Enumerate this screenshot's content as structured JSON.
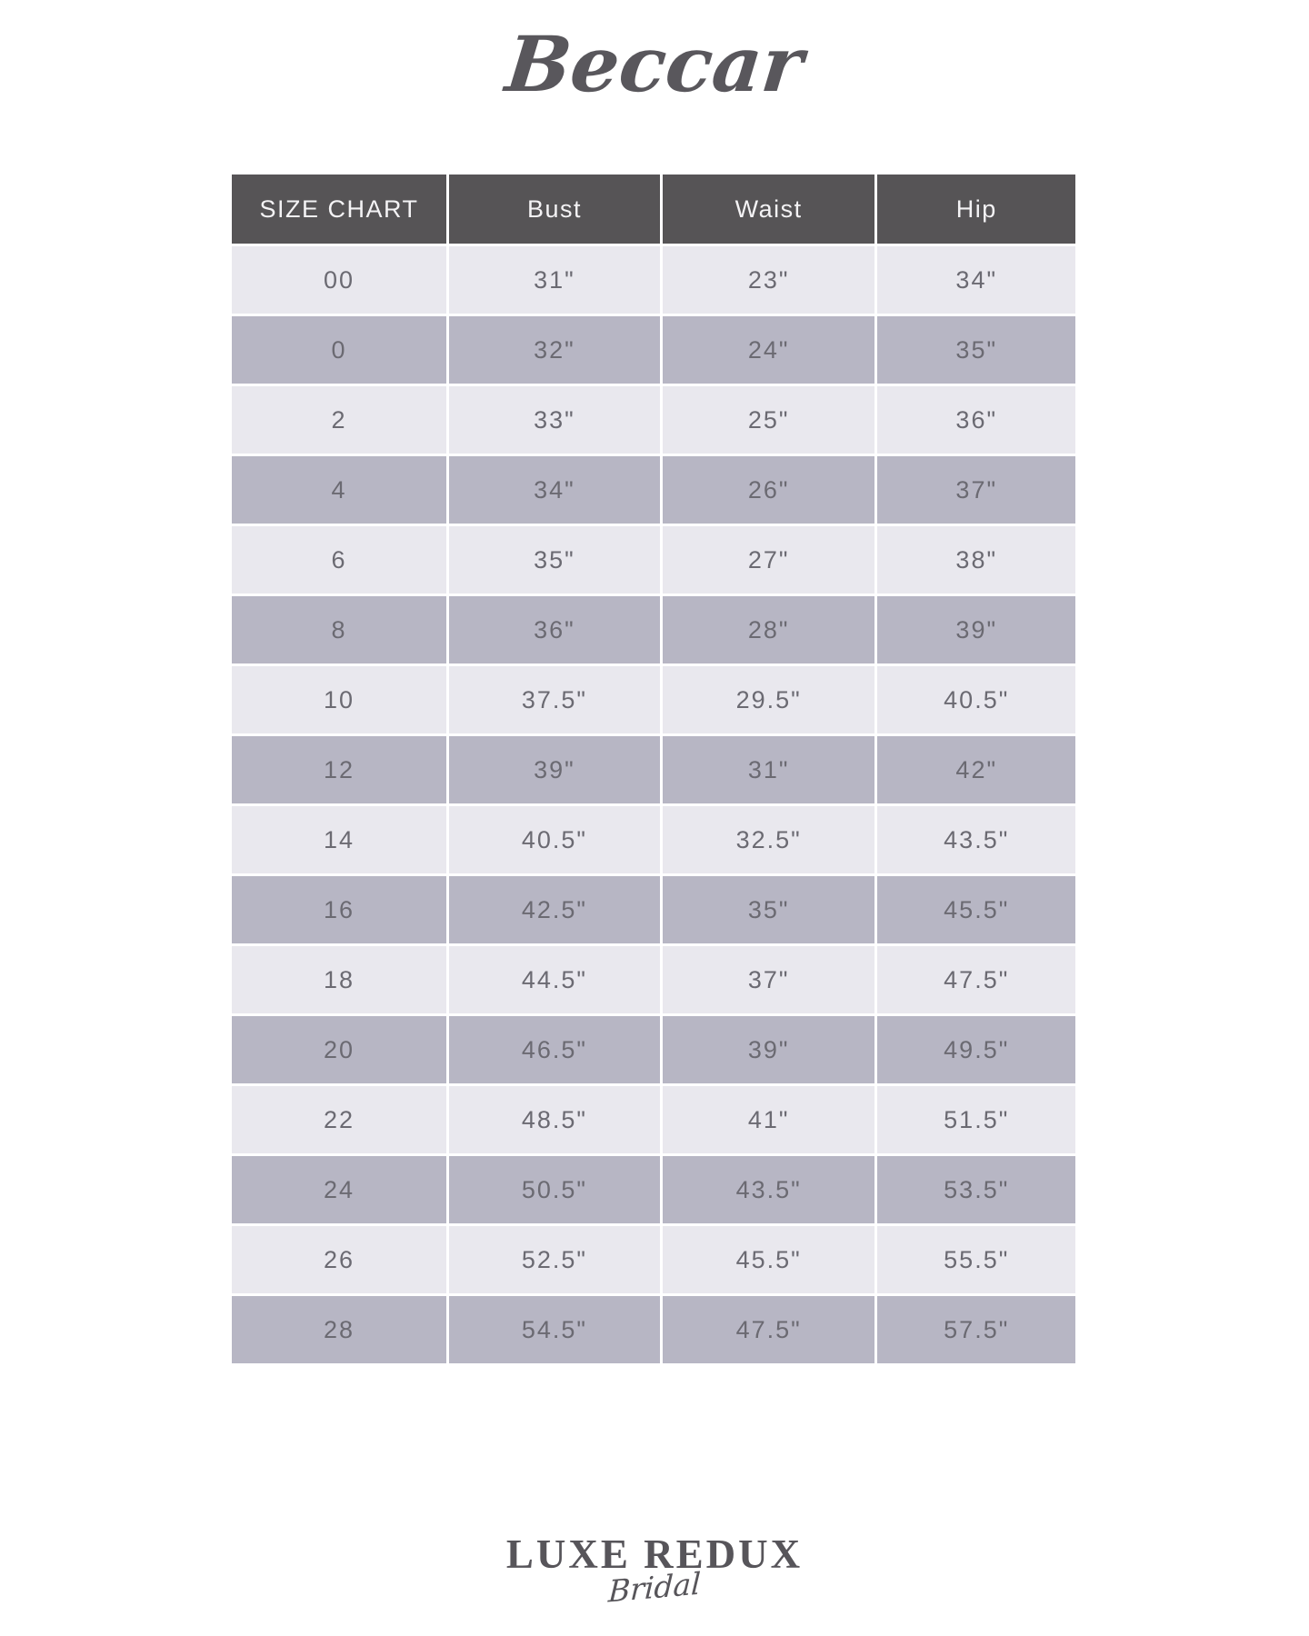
{
  "brand": {
    "logo_text": "Beccar"
  },
  "footer": {
    "logo_main": "LUXE REDUX",
    "logo_sub": "Bridal"
  },
  "colors": {
    "header_bg": "#565456",
    "header_text": "#f4f3f5",
    "row_light": "#e9e8ee",
    "row_dark": "#b7b6c4",
    "cell_text": "#6b6a72",
    "logo_text": "#59575c"
  },
  "chart_data": {
    "type": "table",
    "title": "SIZE CHART",
    "columns": [
      "SIZE CHART",
      "Bust",
      "Waist",
      "Hip"
    ],
    "rows": [
      [
        "00",
        "31\"",
        "23\"",
        "34\""
      ],
      [
        "0",
        "32\"",
        "24\"",
        "35\""
      ],
      [
        "2",
        "33\"",
        "25\"",
        "36\""
      ],
      [
        "4",
        "34\"",
        "26\"",
        "37\""
      ],
      [
        "6",
        "35\"",
        "27\"",
        "38\""
      ],
      [
        "8",
        "36\"",
        "28\"",
        "39\""
      ],
      [
        "10",
        "37.5\"",
        "29.5\"",
        "40.5\""
      ],
      [
        "12",
        "39\"",
        "31\"",
        "42\""
      ],
      [
        "14",
        "40.5\"",
        "32.5\"",
        "43.5\""
      ],
      [
        "16",
        "42.5\"",
        "35\"",
        "45.5\""
      ],
      [
        "18",
        "44.5\"",
        "37\"",
        "47.5\""
      ],
      [
        "20",
        "46.5\"",
        "39\"",
        "49.5\""
      ],
      [
        "22",
        "48.5\"",
        "41\"",
        "51.5\""
      ],
      [
        "24",
        "50.5\"",
        "43.5\"",
        "53.5\""
      ],
      [
        "26",
        "52.5\"",
        "45.5\"",
        "55.5\""
      ],
      [
        "28",
        "54.5\"",
        "47.5\"",
        "57.5\""
      ]
    ]
  }
}
